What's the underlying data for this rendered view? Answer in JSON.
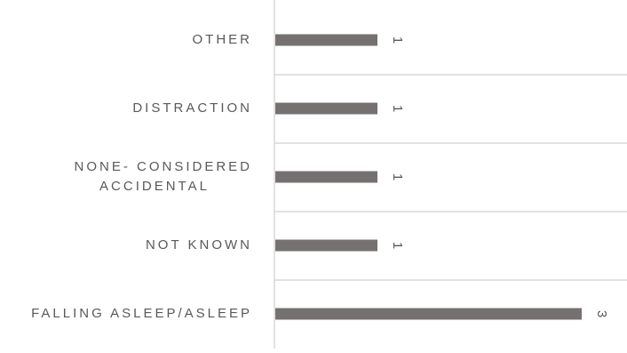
{
  "chart_data": {
    "type": "bar",
    "orientation": "horizontal",
    "categories": [
      "OTHER",
      "DISTRACTION",
      "NONE- CONSIDERED ACCIDENTAL",
      "NOT KNOWN",
      "FALLING ASLEEP/ASLEEP"
    ],
    "category_lines": [
      [
        "OTHER"
      ],
      [
        "DISTRACTION"
      ],
      [
        "NONE- CONSIDERED",
        "ACCIDENTAL"
      ],
      [
        "NOT KNOWN"
      ],
      [
        "FALLING ASLEEP/ASLEEP"
      ]
    ],
    "values": [
      1,
      1,
      1,
      1,
      3
    ],
    "data_labels": [
      "1",
      "1",
      "1",
      "1",
      "3"
    ],
    "xlim": [
      0,
      3.2
    ],
    "bar_color": "#757171",
    "grid_color": "#d9d9d9",
    "axis_line_color": "#d9d9d9",
    "label_color": "#595959",
    "horizontal_gridlines": true,
    "data_label_rotation": "rotated 90 degrees",
    "legend": "none",
    "title": "",
    "xlabel": "",
    "ylabel": ""
  }
}
